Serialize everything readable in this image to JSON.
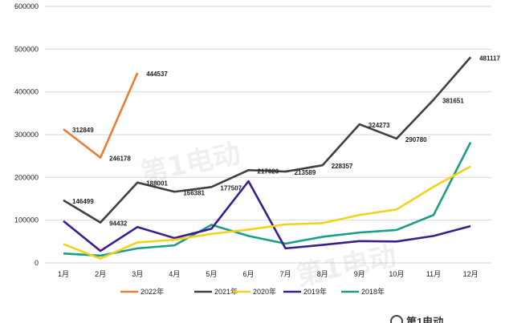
{
  "chart_data": {
    "type": "line",
    "categories": [
      "1月",
      "2月",
      "3月",
      "4月",
      "5月",
      "6月",
      "7月",
      "8月",
      "9月",
      "10月",
      "11月",
      "12月"
    ],
    "ylim": [
      0,
      600000
    ],
    "yticks": [
      "0",
      "100000",
      "200000",
      "300000",
      "400000",
      "500000",
      "600000"
    ],
    "grid": true,
    "legend_position": "bottom",
    "series": [
      {
        "name": "2022年",
        "color": "#ED7D31",
        "values": [
          312849,
          246178,
          444537,
          null,
          null,
          null,
          null,
          null,
          null,
          null,
          null,
          null
        ],
        "labels": [
          "312849",
          "246178",
          "444537"
        ]
      },
      {
        "name": "2021年",
        "color": "#404040",
        "values": [
          146499,
          94432,
          188001,
          166381,
          177507,
          217020,
          213589,
          228357,
          324273,
          290780,
          381651,
          481117
        ],
        "labels": [
          "146499",
          "94432",
          "188001",
          "166381",
          "177507",
          "217020",
          "213589",
          "228357",
          "324273",
          "290780",
          "381651",
          "481117"
        ]
      },
      {
        "name": "2020年",
        "color": "#F2D21A",
        "values": [
          44000,
          10000,
          48000,
          54000,
          68000,
          78000,
          90000,
          93000,
          112000,
          125000,
          178000,
          226000
        ],
        "labels": []
      },
      {
        "name": "2019年",
        "color": "#3A1F8C",
        "values": [
          98000,
          28000,
          84000,
          58000,
          80000,
          191000,
          34000,
          42000,
          51000,
          50000,
          63000,
          86000
        ],
        "labels": []
      },
      {
        "name": "2018年",
        "color": "#1A9E86",
        "values": [
          22000,
          17000,
          34000,
          41000,
          89000,
          63000,
          45000,
          61000,
          71000,
          77000,
          112000,
          282000
        ],
        "labels": []
      }
    ]
  },
  "watermark": {
    "text": "第1电动"
  },
  "footer_logo": {
    "text": "第1电动"
  }
}
